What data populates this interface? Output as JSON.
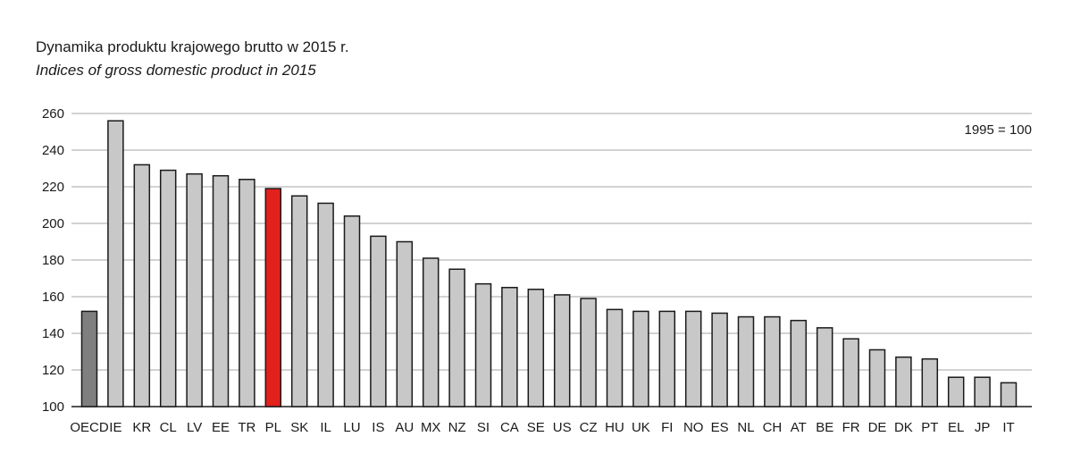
{
  "chart_data": {
    "type": "bar",
    "title": "Dynamika produktu krajowego brutto w 2015 r.",
    "subtitle": "Indices of gross domestic product in 2015",
    "note": "1995 = 100",
    "categories": [
      "OECD",
      "IE",
      "KR",
      "CL",
      "LV",
      "EE",
      "TR",
      "PL",
      "SK",
      "IL",
      "LU",
      "IS",
      "AU",
      "MX",
      "NZ",
      "SI",
      "CA",
      "SE",
      "US",
      "CZ",
      "HU",
      "UK",
      "FI",
      "NO",
      "ES",
      "NL",
      "CH",
      "AT",
      "BE",
      "FR",
      "DE",
      "DK",
      "PT",
      "EL",
      "JP",
      "IT"
    ],
    "values": [
      152,
      256,
      232,
      229,
      227,
      226,
      224,
      219,
      215,
      211,
      204,
      193,
      190,
      181,
      175,
      167,
      165,
      164,
      161,
      159,
      153,
      152,
      152,
      152,
      151,
      149,
      149,
      147,
      143,
      137,
      131,
      127,
      126,
      116,
      116,
      113
    ],
    "ylim": [
      100,
      260
    ],
    "yticks": [
      100,
      120,
      140,
      160,
      180,
      200,
      220,
      240,
      260
    ],
    "grid": true,
    "colors": {
      "default": "#c8c8c8",
      "oecd": "#7f7f7f",
      "highlight": "#e3211c",
      "gridline": "#a6a6a6",
      "outline": "#1a1a1a"
    },
    "highlight_categories": {
      "OECD": "oecd",
      "PL": "highlight"
    }
  }
}
